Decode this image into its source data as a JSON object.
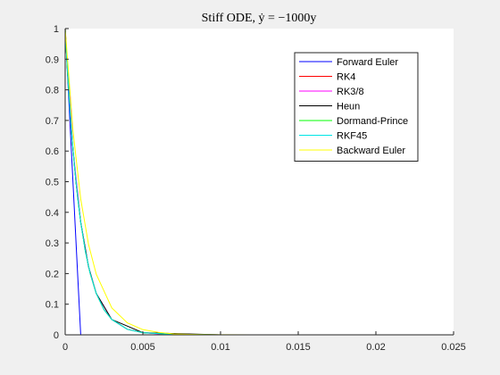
{
  "chart_data": {
    "type": "line",
    "title": "Stiff ODE, ẏ = −1000y",
    "xlim": [
      0,
      0.025
    ],
    "ylim": [
      0,
      1
    ],
    "xticks": [
      0,
      0.005,
      0.01,
      0.015,
      0.02,
      0.025
    ],
    "xtick_labels": [
      "0",
      "0.005",
      "0.01",
      "0.015",
      "0.02",
      "0.025"
    ],
    "yticks": [
      0,
      0.1,
      0.2,
      0.3,
      0.4,
      0.5,
      0.6,
      0.7,
      0.8,
      0.9,
      1
    ],
    "ytick_labels": [
      "0",
      "0.1",
      "0.2",
      "0.3",
      "0.4",
      "0.5",
      "0.6",
      "0.7",
      "0.8",
      "0.9",
      "1"
    ],
    "grid": false,
    "legend_position": "top-right",
    "series": [
      {
        "name": "Forward Euler",
        "color": "#0000ff",
        "x": [
          0,
          0.001,
          0.002,
          0.003,
          0.005,
          0.008,
          0.012,
          0.016,
          0.02
        ],
        "y": [
          1,
          0,
          0,
          0,
          0,
          0,
          0,
          0,
          0
        ]
      },
      {
        "name": "RK4",
        "color": "#ff0000",
        "x": [
          0,
          0.0001,
          0.0002,
          0.0003,
          0.0004,
          0.0005,
          0.0007,
          0.001,
          0.0013,
          0.0016,
          0.002,
          0.0025,
          0.003,
          0.004,
          0.005,
          0.007,
          0.01,
          0.015,
          0.02
        ],
        "y": [
          1,
          0.905,
          0.819,
          0.741,
          0.67,
          0.607,
          0.497,
          0.368,
          0.273,
          0.202,
          0.135,
          0.082,
          0.05,
          0.018,
          0.007,
          0.001,
          0,
          0,
          0
        ]
      },
      {
        "name": "RK3/8",
        "color": "#ff00ff",
        "x": [
          0,
          0.0005,
          0.001,
          0.0015,
          0.002,
          0.003,
          0.004,
          0.005,
          0.006,
          0.007,
          0.008,
          0.01,
          0.012,
          0.015,
          0.02
        ],
        "y": [
          1,
          0.607,
          0.368,
          0.223,
          0.135,
          0.05,
          0.018,
          0.007,
          0.003,
          0.001,
          0.0003,
          0,
          0,
          0,
          0
        ]
      },
      {
        "name": "Heun",
        "color": "#000000",
        "x": [
          0,
          0.0001,
          0.0002,
          0.0003,
          0.0005,
          0.0007,
          0.001,
          0.0015,
          0.002,
          0.003,
          0.005,
          0.01,
          0.015,
          0.02
        ],
        "y": [
          1,
          0.905,
          0.819,
          0.741,
          0.607,
          0.497,
          0.368,
          0.223,
          0.135,
          0.05,
          0.007,
          0,
          0,
          0
        ]
      },
      {
        "name": "Dormand-Prince",
        "color": "#00ff00",
        "x": [
          0,
          0.0001,
          0.0002,
          0.0004,
          0.0006,
          0.0008,
          0.001,
          0.0013,
          0.0016,
          0.002,
          0.0025,
          0.003,
          0.004,
          0.005,
          0.007,
          0.01,
          0.013,
          0.016,
          0.019,
          0.0213
        ],
        "y": [
          1,
          0.905,
          0.819,
          0.67,
          0.549,
          0.449,
          0.368,
          0.273,
          0.202,
          0.135,
          0.082,
          0.05,
          0.018,
          0.007,
          0.001,
          0,
          0,
          0,
          0,
          0
        ]
      },
      {
        "name": "RKF45",
        "color": "#00e5e5",
        "x": [
          0,
          5e-05,
          0.0001,
          0.0002,
          0.0003,
          0.0004,
          0.0006,
          0.0008,
          0.001,
          0.0013,
          0.0016,
          0.002,
          0.0025,
          0.003,
          0.004,
          0.005,
          0.007,
          0.01,
          0.015,
          0.02
        ],
        "y": [
          1,
          0.951,
          0.905,
          0.819,
          0.741,
          0.67,
          0.549,
          0.449,
          0.368,
          0.273,
          0.202,
          0.135,
          0.082,
          0.05,
          0.018,
          0.007,
          0.001,
          0,
          0,
          0
        ]
      },
      {
        "name": "Backward Euler",
        "color": "#ffff00",
        "x": [
          0,
          0.0005,
          0.001,
          0.0015,
          0.002,
          0.003,
          0.004,
          0.005,
          0.006,
          0.007,
          0.008,
          0.009,
          0.01,
          0.012,
          0.015,
          0.02
        ],
        "y": [
          1,
          0.667,
          0.444,
          0.296,
          0.198,
          0.088,
          0.039,
          0.017,
          0.008,
          0.003,
          0.0015,
          0.0007,
          0.0003,
          0.0001,
          0,
          0
        ]
      }
    ]
  }
}
